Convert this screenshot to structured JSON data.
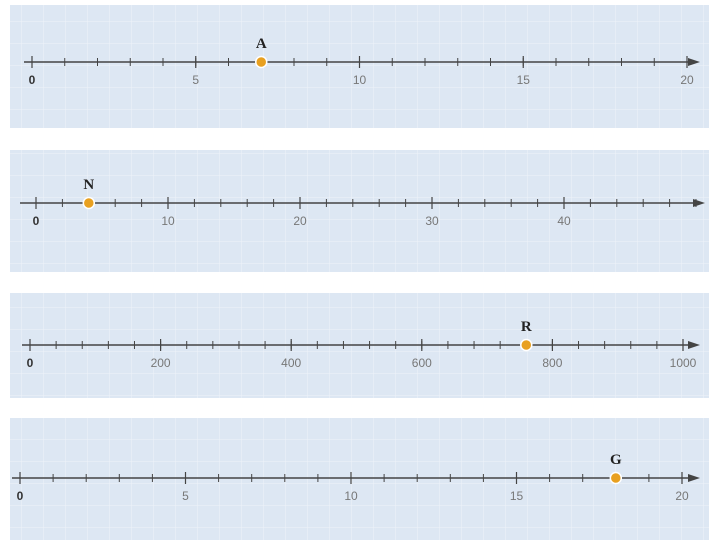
{
  "chart_data": [
    {
      "type": "numberline",
      "xlim": [
        0,
        20
      ],
      "xticks": [
        0,
        5,
        10,
        15,
        20
      ],
      "minor_step": 1,
      "points": [
        {
          "label": "A",
          "x": 7
        }
      ],
      "color": "#e8a020"
    },
    {
      "type": "numberline",
      "xlim": [
        0,
        50
      ],
      "xticks": [
        0,
        10,
        20,
        30,
        40
      ],
      "minor_step": 2,
      "points": [
        {
          "label": "N",
          "x": 4
        }
      ],
      "color": "#e8a020"
    },
    {
      "type": "numberline",
      "xlim": [
        0,
        1000
      ],
      "xticks": [
        0,
        200,
        400,
        600,
        800,
        1000
      ],
      "minor_step": 40,
      "points": [
        {
          "label": "R",
          "x": 760
        }
      ],
      "color": "#e8a020"
    },
    {
      "type": "numberline",
      "xlim": [
        0,
        20
      ],
      "xticks": [
        0,
        5,
        10,
        15,
        20
      ],
      "minor_step": 1,
      "points": [
        {
          "label": "G",
          "x": 18
        }
      ],
      "color": "#e8a020"
    }
  ]
}
